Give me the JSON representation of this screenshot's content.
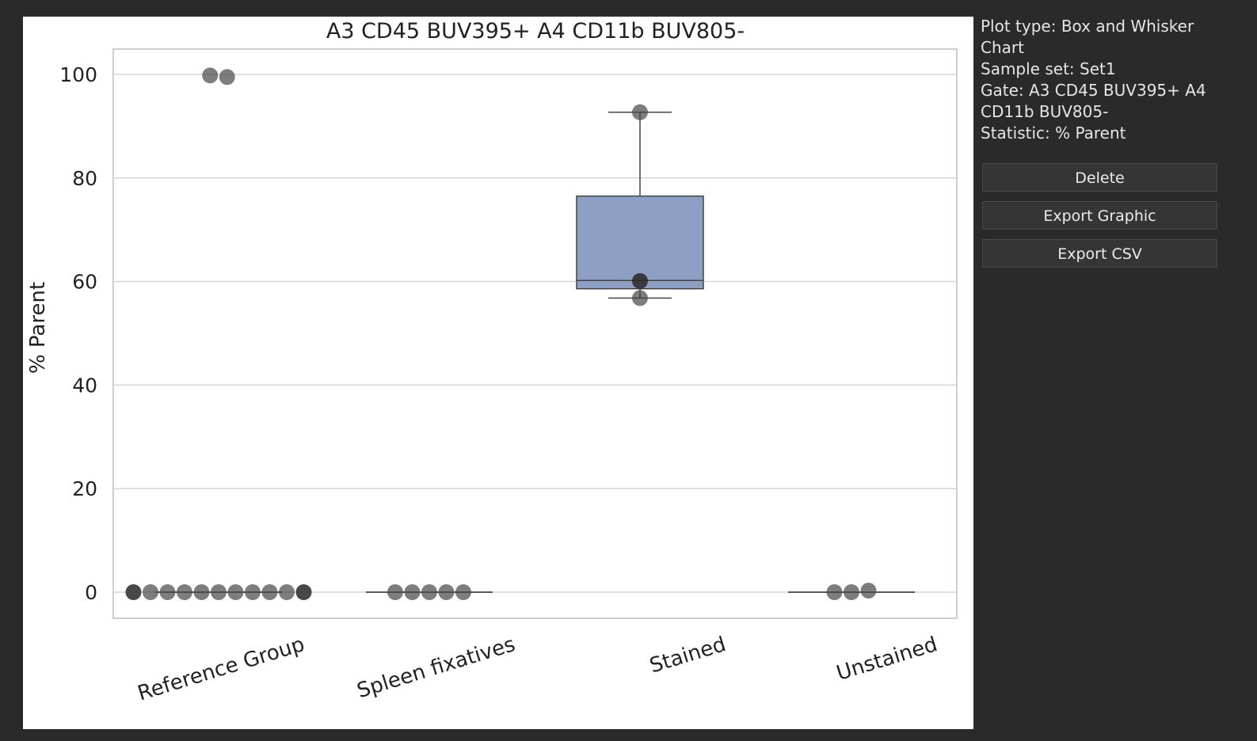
{
  "side_panel": {
    "plot_type": "Plot type: Box and Whisker Chart",
    "sample_set": "Sample set: Set1",
    "gate": "Gate: A3 CD45 BUV395+ A4 CD11b BUV805-",
    "statistic": "Statistic: % Parent",
    "buttons": {
      "delete": "Delete",
      "export_graphic": "Export Graphic",
      "export_csv": "Export CSV"
    }
  },
  "chart_data": {
    "type": "box",
    "title": "A3 CD45 BUV395+ A4 CD11b BUV805-",
    "xlabel": "",
    "ylabel": "% Parent",
    "ylim": [
      -5,
      105
    ],
    "yticks": [
      0,
      20,
      40,
      60,
      80,
      100
    ],
    "grid": "horizontal",
    "categories": [
      "Reference Group",
      "Spleen fixatives",
      "Stained",
      "Unstained"
    ],
    "box_color": "#8e9fc4",
    "boxes": [
      {
        "category": "Reference Group",
        "q1": 0,
        "median": 0,
        "q3": 0,
        "whisker_low": 0,
        "whisker_high": 0
      },
      {
        "category": "Spleen fixatives",
        "q1": 0,
        "median": 0,
        "q3": 0,
        "whisker_low": 0,
        "whisker_high": 0
      },
      {
        "category": "Stained",
        "q1": 58.6,
        "median": 60.2,
        "q3": 76.5,
        "whisker_low": 56.8,
        "whisker_high": 92.7
      },
      {
        "category": "Unstained",
        "q1": 0,
        "median": 0,
        "q3": 0,
        "whisker_low": 0,
        "whisker_high": 0
      }
    ],
    "points": [
      {
        "category": "Reference Group",
        "values": [
          0,
          0,
          0,
          0,
          0,
          0,
          0,
          0,
          0,
          0,
          0,
          99.8,
          99.5
        ]
      },
      {
        "category": "Spleen fixatives",
        "values": [
          0,
          0,
          0,
          0,
          0
        ]
      },
      {
        "category": "Stained",
        "values": [
          92.7,
          60.1,
          56.8
        ]
      },
      {
        "category": "Unstained",
        "values": [
          0,
          0,
          0.3
        ]
      }
    ]
  }
}
